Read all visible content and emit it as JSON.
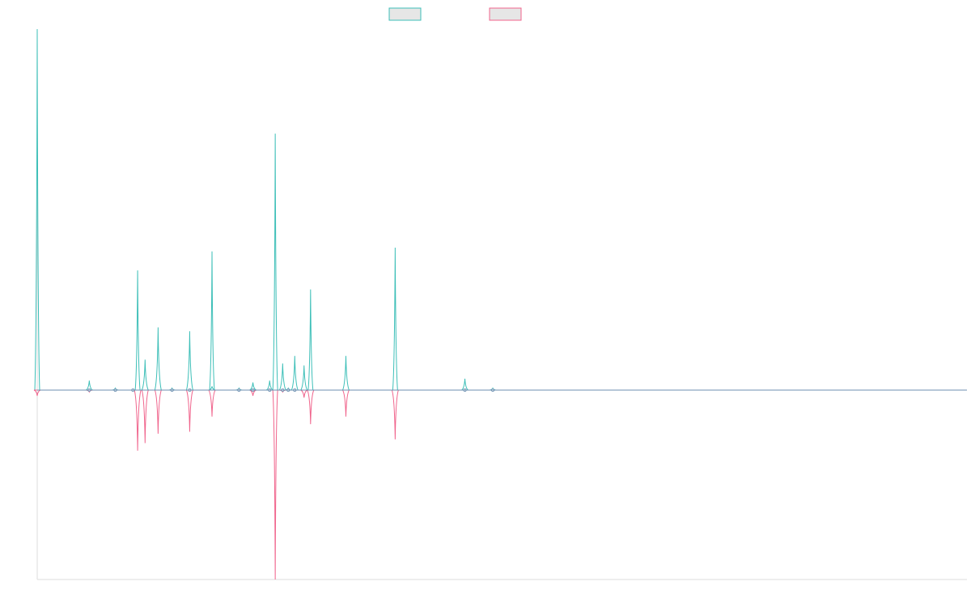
{
  "chart_data": {
    "type": "line",
    "title": "",
    "xlabel": "",
    "ylabel": "",
    "grid": false,
    "legend_position": "top-center",
    "xlim": [
      0,
      1000
    ],
    "ylim": [
      -1,
      1
    ],
    "series": [
      {
        "color": "#3dbfb8",
        "direction": "up",
        "values": [
          [
            0,
            1.9
          ],
          [
            56,
            0.05
          ],
          [
            84,
            0.01
          ],
          [
            103,
            0.0
          ],
          [
            108,
            0.63
          ],
          [
            116,
            0.16
          ],
          [
            130,
            0.33
          ],
          [
            145,
            0.01
          ],
          [
            164,
            0.31
          ],
          [
            188,
            0.02
          ],
          [
            188,
            0.73
          ],
          [
            217,
            0.01
          ],
          [
            232,
            0.04
          ],
          [
            250,
            0.05
          ],
          [
            256,
            1.35
          ],
          [
            264,
            0.14
          ],
          [
            270,
            0.01
          ],
          [
            277,
            0.18
          ],
          [
            287,
            0.13
          ],
          [
            294,
            0.53
          ],
          [
            332,
            0.18
          ],
          [
            385,
            0.75
          ],
          [
            460,
            0.06
          ],
          [
            490,
            0.01
          ]
        ]
      },
      {
        "color": "#f0648c",
        "direction": "down",
        "values": [
          [
            0,
            0.03
          ],
          [
            56,
            0.01
          ],
          [
            108,
            0.32
          ],
          [
            116,
            0.28
          ],
          [
            130,
            0.23
          ],
          [
            164,
            0.22
          ],
          [
            188,
            0.14
          ],
          [
            232,
            0.03
          ],
          [
            256,
            1.0
          ],
          [
            264,
            0.01
          ],
          [
            287,
            0.04
          ],
          [
            294,
            0.18
          ],
          [
            332,
            0.14
          ],
          [
            385,
            0.26
          ]
        ]
      }
    ]
  },
  "colors": {
    "axis": "#dddddd",
    "baseline": "#6c8fb0",
    "legend_fill": "#e6e6e6"
  }
}
